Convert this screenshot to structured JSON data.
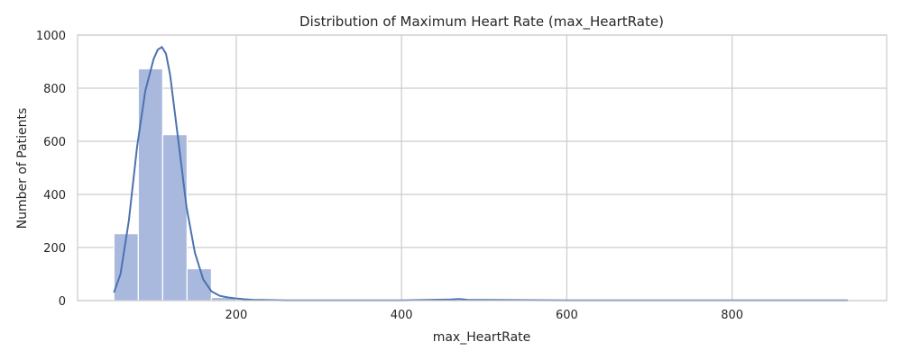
{
  "chart_data": {
    "type": "bar",
    "title": "Distribution of Maximum Heart Rate (max_HeartRate)",
    "xlabel": "max_HeartRate",
    "ylabel": "Number of Patients",
    "xlim": [
      8,
      987
    ],
    "ylim": [
      0,
      1000
    ],
    "xticks": [
      200,
      400,
      600,
      800
    ],
    "yticks": [
      0,
      200,
      400,
      600,
      800,
      1000
    ],
    "grid": true,
    "bin_edges": [
      52,
      81.5,
      111,
      140.5,
      170,
      199.5,
      229,
      258.5,
      288,
      317.5,
      347,
      376.5,
      406,
      435.5,
      465,
      494.5,
      524,
      553.5,
      583,
      612.5,
      642,
      671.5,
      701,
      730.5,
      760,
      789.5,
      819,
      848.5,
      878,
      907.5,
      942
    ],
    "counts": [
      252,
      873,
      625,
      120,
      12,
      2,
      1,
      1,
      1,
      1,
      1,
      1,
      1,
      1,
      3,
      1,
      1,
      1,
      1,
      1,
      1,
      1,
      1,
      1,
      1,
      1,
      1,
      1,
      1,
      1
    ],
    "kde": {
      "x": [
        52,
        60,
        70,
        80,
        90,
        100,
        105,
        110,
        115,
        120,
        130,
        140,
        150,
        160,
        170,
        180,
        190,
        200,
        210,
        220,
        240,
        260,
        300,
        400,
        460,
        470,
        480,
        600,
        800,
        940
      ],
      "y": [
        30,
        100,
        300,
        580,
        790,
        910,
        945,
        955,
        930,
        850,
        600,
        350,
        180,
        80,
        35,
        18,
        12,
        8,
        5,
        3,
        2,
        1,
        1,
        1,
        4,
        6,
        3,
        1,
        1,
        1
      ]
    },
    "colors": {
      "bar": "#a8b9dd",
      "bar_edge": "#ffffff",
      "line": "#4c72b0",
      "grid": "#cccccc",
      "background": "#ffffff"
    }
  }
}
